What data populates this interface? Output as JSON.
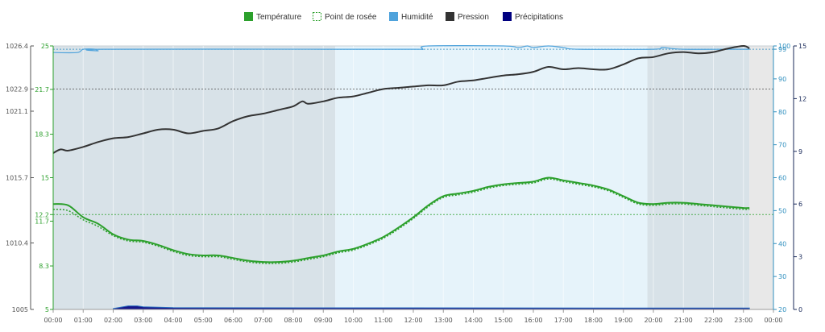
{
  "colors": {
    "temperature": "#2ca02c",
    "dewpoint": "#2ca02c",
    "humidity": "#4fa3dc",
    "pressure": "#333333",
    "precipitation": "#000080",
    "night_band": "#d8e2e8",
    "day_band": "#e6f3fa",
    "outside_band": "#e8e8e8",
    "pressure_axis": "#555555",
    "temp_axis": "#2ca02c",
    "humidity_axis": "#2f8fbf",
    "precip_axis": "#1a2a5a"
  },
  "chart_data": {
    "type": "line",
    "legend": [
      {
        "label": "Température",
        "key": "temperature",
        "icon": "filled-square"
      },
      {
        "label": "Point de rosée",
        "key": "dewpoint",
        "icon": "dashed-square"
      },
      {
        "label": "Humidité",
        "key": "humidity",
        "icon": "filled-square"
      },
      {
        "label": "Pression",
        "key": "pressure",
        "icon": "filled-square"
      },
      {
        "label": "Précipitations",
        "key": "precipitation",
        "icon": "filled-square"
      }
    ],
    "legend_position": "top-center",
    "x_ticks": [
      "00:00",
      "01:00",
      "02:00",
      "03:00",
      "04:00",
      "05:00",
      "06:00",
      "07:00",
      "08:00",
      "09:00",
      "10:00",
      "11:00",
      "12:00",
      "13:00",
      "14:00",
      "15:00",
      "16:00",
      "17:00",
      "18:00",
      "19:00",
      "20:00",
      "21:00",
      "22:00",
      "23:00",
      "00:00"
    ],
    "xlim_hours": [
      0,
      24
    ],
    "axes": {
      "pressure": {
        "side": "left",
        "ticks": [
          "1026.4",
          "1022.9",
          "1021.1",
          "1015.7",
          "1010.4",
          "1005"
        ],
        "ylim": [
          1005,
          1026.4
        ]
      },
      "temperature": {
        "side": "left",
        "ticks": [
          "25",
          "21.7",
          "18.3",
          "15",
          "12.2",
          "11.7",
          "8.3",
          "5"
        ],
        "ylim": [
          5,
          25
        ]
      },
      "humidity": {
        "side": "right",
        "ticks": [
          "100",
          "99",
          "90",
          "80",
          "70",
          "60",
          "50",
          "40",
          "30",
          "20"
        ],
        "ylim": [
          20,
          100
        ]
      },
      "precipitation": {
        "side": "right",
        "ticks": [
          "15",
          "12",
          "9",
          "6",
          "3",
          "0"
        ],
        "ylim": [
          0,
          15
        ]
      }
    },
    "reference_lines": [
      {
        "axis": "pressure",
        "value": 1022.9,
        "color": "#555555"
      },
      {
        "axis": "temperature",
        "value": 12.2,
        "color": "#2ca02c"
      },
      {
        "axis": "humidity",
        "value": 99,
        "color": "#2f8fbf"
      }
    ],
    "shading": [
      {
        "from": 0,
        "to": 9.4,
        "kind": "night"
      },
      {
        "from": 9.4,
        "to": 19.8,
        "kind": "day"
      },
      {
        "from": 19.8,
        "to": 23.2,
        "kind": "night"
      },
      {
        "from": 23.2,
        "to": 24,
        "kind": "outside"
      }
    ],
    "grid": true,
    "series": [
      {
        "name": "Pression",
        "key": "pressure",
        "axis": "pressure",
        "style": "solid",
        "points": [
          [
            0,
            1017.7
          ],
          [
            0.25,
            1018.0
          ],
          [
            0.5,
            1017.9
          ],
          [
            1.0,
            1018.2
          ],
          [
            1.5,
            1018.6
          ],
          [
            2.0,
            1018.9
          ],
          [
            2.5,
            1019.0
          ],
          [
            3.0,
            1019.3
          ],
          [
            3.5,
            1019.6
          ],
          [
            4.0,
            1019.6
          ],
          [
            4.5,
            1019.3
          ],
          [
            5.0,
            1019.5
          ],
          [
            5.5,
            1019.7
          ],
          [
            6.0,
            1020.3
          ],
          [
            6.5,
            1020.7
          ],
          [
            7.0,
            1020.9
          ],
          [
            7.5,
            1021.2
          ],
          [
            8.0,
            1021.5
          ],
          [
            8.3,
            1021.9
          ],
          [
            8.5,
            1021.7
          ],
          [
            9.0,
            1021.9
          ],
          [
            9.5,
            1022.2
          ],
          [
            10.0,
            1022.3
          ],
          [
            10.5,
            1022.6
          ],
          [
            11.0,
            1022.9
          ],
          [
            11.5,
            1023.0
          ],
          [
            12.0,
            1023.1
          ],
          [
            12.5,
            1023.2
          ],
          [
            13.0,
            1023.2
          ],
          [
            13.5,
            1023.5
          ],
          [
            14.0,
            1023.6
          ],
          [
            14.5,
            1023.8
          ],
          [
            15.0,
            1024.0
          ],
          [
            15.5,
            1024.1
          ],
          [
            16.0,
            1024.3
          ],
          [
            16.5,
            1024.7
          ],
          [
            17.0,
            1024.5
          ],
          [
            17.5,
            1024.6
          ],
          [
            18.0,
            1024.5
          ],
          [
            18.5,
            1024.5
          ],
          [
            19.0,
            1024.9
          ],
          [
            19.5,
            1025.4
          ],
          [
            20.0,
            1025.5
          ],
          [
            20.5,
            1025.8
          ],
          [
            21.0,
            1025.9
          ],
          [
            21.5,
            1025.8
          ],
          [
            22.0,
            1025.9
          ],
          [
            22.5,
            1026.2
          ],
          [
            23.0,
            1026.4
          ],
          [
            23.2,
            1026.2
          ]
        ]
      },
      {
        "name": "Température",
        "key": "temperature",
        "axis": "temperature",
        "style": "solid",
        "points": [
          [
            0,
            13.0
          ],
          [
            0.5,
            12.9
          ],
          [
            1.0,
            12.0
          ],
          [
            1.5,
            11.5
          ],
          [
            2.0,
            10.7
          ],
          [
            2.5,
            10.3
          ],
          [
            3.0,
            10.2
          ],
          [
            3.5,
            9.9
          ],
          [
            4.0,
            9.5
          ],
          [
            4.5,
            9.2
          ],
          [
            5.0,
            9.1
          ],
          [
            5.5,
            9.1
          ],
          [
            6.0,
            8.9
          ],
          [
            6.5,
            8.7
          ],
          [
            7.0,
            8.6
          ],
          [
            7.5,
            8.6
          ],
          [
            8.0,
            8.7
          ],
          [
            8.5,
            8.9
          ],
          [
            9.0,
            9.1
          ],
          [
            9.5,
            9.4
          ],
          [
            10.0,
            9.6
          ],
          [
            10.5,
            10.0
          ],
          [
            11.0,
            10.5
          ],
          [
            11.5,
            11.2
          ],
          [
            12.0,
            12.0
          ],
          [
            12.5,
            12.9
          ],
          [
            13.0,
            13.6
          ],
          [
            13.5,
            13.8
          ],
          [
            14.0,
            14.0
          ],
          [
            14.5,
            14.3
          ],
          [
            15.0,
            14.5
          ],
          [
            15.5,
            14.6
          ],
          [
            16.0,
            14.7
          ],
          [
            16.5,
            15.0
          ],
          [
            17.0,
            14.8
          ],
          [
            17.5,
            14.6
          ],
          [
            18.0,
            14.4
          ],
          [
            18.5,
            14.1
          ],
          [
            19.0,
            13.6
          ],
          [
            19.5,
            13.1
          ],
          [
            20.0,
            13.0
          ],
          [
            20.5,
            13.1
          ],
          [
            21.0,
            13.1
          ],
          [
            21.5,
            13.0
          ],
          [
            22.0,
            12.9
          ],
          [
            22.5,
            12.8
          ],
          [
            23.0,
            12.7
          ],
          [
            23.2,
            12.7
          ]
        ]
      },
      {
        "name": "Point de rosée",
        "key": "dewpoint",
        "axis": "temperature",
        "style": "dashed",
        "points": [
          [
            0,
            12.6
          ],
          [
            0.5,
            12.5
          ],
          [
            1.0,
            11.8
          ],
          [
            1.5,
            11.3
          ],
          [
            2.0,
            10.6
          ],
          [
            2.5,
            10.2
          ],
          [
            3.0,
            10.1
          ],
          [
            3.5,
            9.8
          ],
          [
            4.0,
            9.4
          ],
          [
            4.5,
            9.1
          ],
          [
            5.0,
            9.0
          ],
          [
            5.5,
            9.0
          ],
          [
            6.0,
            8.8
          ],
          [
            6.5,
            8.6
          ],
          [
            7.0,
            8.5
          ],
          [
            7.5,
            8.5
          ],
          [
            8.0,
            8.6
          ],
          [
            8.5,
            8.8
          ],
          [
            9.0,
            9.0
          ],
          [
            9.5,
            9.3
          ],
          [
            10.0,
            9.5
          ],
          [
            10.5,
            9.9
          ],
          [
            11.0,
            10.4
          ],
          [
            11.5,
            11.1
          ],
          [
            12.0,
            11.9
          ],
          [
            12.5,
            12.8
          ],
          [
            13.0,
            13.5
          ],
          [
            13.5,
            13.7
          ],
          [
            14.0,
            13.9
          ],
          [
            14.5,
            14.2
          ],
          [
            15.0,
            14.4
          ],
          [
            15.5,
            14.5
          ],
          [
            16.0,
            14.6
          ],
          [
            16.5,
            14.9
          ],
          [
            17.0,
            14.7
          ],
          [
            17.5,
            14.5
          ],
          [
            18.0,
            14.3
          ],
          [
            18.5,
            14.0
          ],
          [
            19.0,
            13.5
          ],
          [
            19.5,
            13.0
          ],
          [
            20.0,
            12.9
          ],
          [
            20.5,
            13.0
          ],
          [
            21.0,
            13.0
          ],
          [
            21.5,
            12.9
          ],
          [
            22.0,
            12.8
          ],
          [
            22.5,
            12.7
          ],
          [
            23.0,
            12.6
          ],
          [
            23.2,
            12.6
          ]
        ]
      },
      {
        "name": "Humidité",
        "key": "humidity",
        "axis": "humidity",
        "style": "solid",
        "points": [
          [
            0,
            98
          ],
          [
            0.8,
            98
          ],
          [
            1.0,
            99
          ],
          [
            1.4,
            99
          ],
          [
            1.5,
            98.5
          ],
          [
            1.7,
            99
          ],
          [
            9.0,
            99
          ],
          [
            12.0,
            99
          ],
          [
            12.3,
            99
          ],
          [
            12.5,
            100
          ],
          [
            15.0,
            100
          ],
          [
            15.5,
            99.5
          ],
          [
            15.8,
            100
          ],
          [
            16.0,
            99.5
          ],
          [
            16.5,
            100
          ],
          [
            17.0,
            99.5
          ],
          [
            17.5,
            99
          ],
          [
            20.0,
            99
          ],
          [
            20.3,
            99.5
          ],
          [
            21.0,
            99
          ],
          [
            23.2,
            99
          ]
        ]
      },
      {
        "name": "Précipitations",
        "key": "precipitation",
        "axis": "precipitation",
        "style": "bar",
        "points": [
          [
            2.0,
            0.05
          ],
          [
            2.5,
            0.2
          ],
          [
            2.8,
            0.2
          ],
          [
            3.0,
            0.15
          ],
          [
            4.0,
            0.1
          ],
          [
            20.0,
            0.08
          ],
          [
            23.2,
            0.08
          ]
        ]
      }
    ]
  }
}
